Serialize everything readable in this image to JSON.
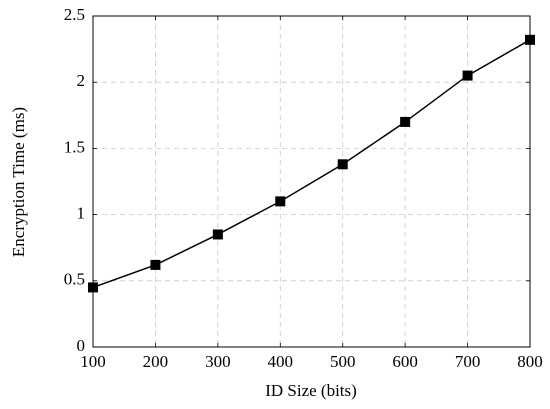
{
  "chart_data": {
    "type": "line",
    "x_label": "ID Size (bits)",
    "y_label": "Encryption Time (ms)",
    "x": [
      100,
      200,
      300,
      400,
      500,
      600,
      700,
      800
    ],
    "series": [
      {
        "color": "#000000",
        "marker": "square",
        "values": [
          0.45,
          0.62,
          0.85,
          1.1,
          1.38,
          1.7,
          2.05,
          2.32
        ]
      }
    ],
    "xlim": [
      100,
      800
    ],
    "xticks": [
      100,
      200,
      300,
      400,
      500,
      600,
      700,
      800
    ],
    "ylim": [
      0,
      2.5
    ],
    "yticks": [
      0,
      0.5,
      1,
      1.5,
      2,
      2.5
    ],
    "grid": true
  }
}
